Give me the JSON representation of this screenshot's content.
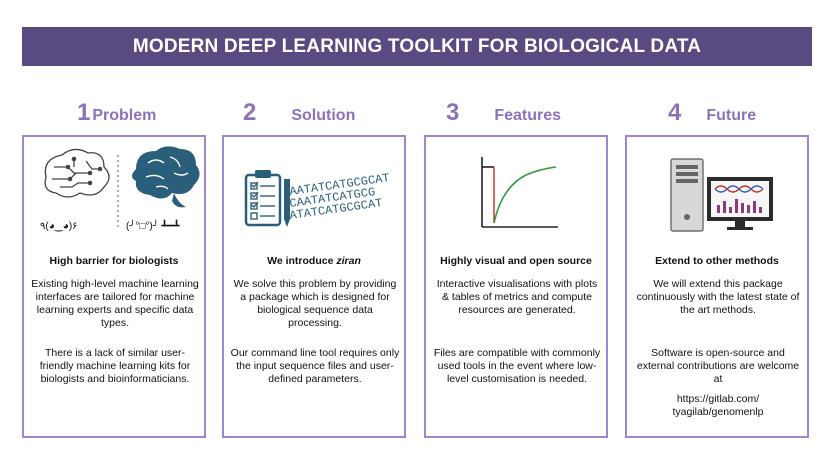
{
  "title": "MODERN DEEP LEARNING TOOLKIT FOR BIOLOGICAL DATA",
  "steps": [
    {
      "number": "1",
      "title": "Problem",
      "heading": "High barrier for biologists",
      "paragraphs": [
        "Existing high-level machine learning interfaces are tailored for machine learning experts and specific data types.",
        "There is a lack of similar user-friendly machine learning kits for biologists and bioinformaticians."
      ],
      "emoticons": [
        "٩(◕‿◕)۶",
        "(╯°□°)╯ ┻━┻"
      ]
    },
    {
      "number": "2",
      "title": "Solution",
      "heading_prefix": "We introduce ",
      "heading_emph": "ziran",
      "paragraphs": [
        "We solve this problem by providing a package which is designed for biological sequence data processing.",
        "Our command line tool requires only the input sequence files and user-defined parameters."
      ],
      "dna_lines": [
        "AATATCATGCGCAT",
        "CAATATCATGCG",
        "ATATCATGCGCAT"
      ]
    },
    {
      "number": "3",
      "title": "Features",
      "heading": "Highly visual and open source",
      "paragraphs": [
        "Interactive visualisations with plots & tables of metrics and compute resources are generated.",
        "Files are compatible with commonly used tools in the event where low-level customisation is needed."
      ]
    },
    {
      "number": "4",
      "title": "Future",
      "heading": "Extend to other methods",
      "paragraphs": [
        "We will extend this package continuously with the latest state of the art methods.",
        "Software is open-source and external contributions are welcome at"
      ],
      "link": "https://gitlab.com/\ntyagilab/genomenlp"
    }
  ],
  "colors": {
    "banner": "#5a4a82",
    "accent": "#8c72bd",
    "border": "#a084cf",
    "brain": "#2a5f7c",
    "curve": "#2f9a3a",
    "dna_red": "#cc2a2a",
    "dna_blue": "#2d5db8"
  }
}
